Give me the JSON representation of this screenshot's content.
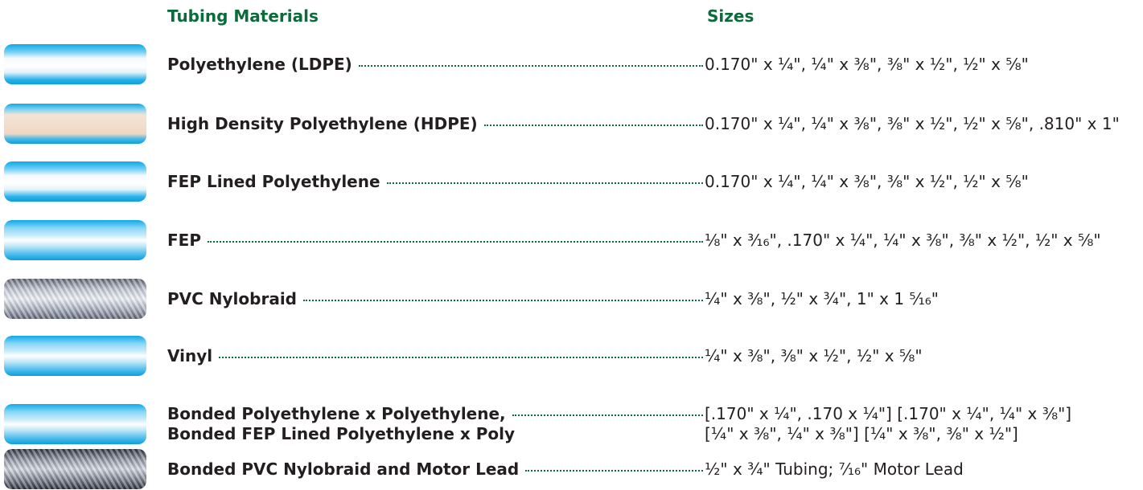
{
  "header": {
    "materials": "Tubing Materials",
    "sizes": "Sizes"
  },
  "rows": [
    {
      "material": [
        "Polyethylene (LDPE)"
      ],
      "sizes": [
        "0.170\" x ¼\", ¼\" x ³⁄₈\", ³⁄₈\" x ½\", ½\" x ⁵⁄₈\""
      ]
    },
    {
      "material": [
        "High Density Polyethylene (HDPE)"
      ],
      "sizes": [
        "0.170\" x ¼\", ¼\" x ³⁄₈\", ³⁄₈\" x ½\", ½\" x ⁵⁄₈\", .810\" x 1\""
      ]
    },
    {
      "material": [
        "FEP Lined Polyethylene"
      ],
      "sizes": [
        "0.170\" x ¼\", ¼\" x ³⁄₈\", ³⁄₈\" x ½\", ½\" x ⁵⁄₈\""
      ]
    },
    {
      "material": [
        "FEP"
      ],
      "sizes": [
        "¹⁄₈\" x ³⁄₁₆\", .170\" x ¼\", ¼\" x ³⁄₈\", ³⁄₈\" x ½\", ½\" x ⁵⁄₈\""
      ]
    },
    {
      "material": [
        "PVC Nylobraid"
      ],
      "sizes": [
        "¼\" x ³⁄₈\", ½\" x ¾\", 1\" x 1 ⁵⁄₁₆\""
      ]
    },
    {
      "material": [
        "Vinyl"
      ],
      "sizes": [
        "¼\" x ³⁄₈\", ³⁄₈\" x ½\", ½\" x ⁵⁄₈\""
      ]
    },
    {
      "material": [
        "Bonded Polyethylene x Polyethylene,",
        "Bonded FEP Lined Polyethylene x Poly"
      ],
      "sizes": [
        "[.170\" x ¼\", .170 x ¼\"] [.170\" x ¼\", ¼\" x ³⁄₈\"]",
        "[¼\" x ³⁄₈\", ¼\" x ³⁄₈\"] [¼\" x ³⁄₈\", ³⁄₈\" x ½\"]"
      ]
    },
    {
      "material": [
        "Bonded PVC Nylobraid and Motor Lead"
      ],
      "sizes": [
        "½\" x ¾\" Tubing; ⁷⁄₁₆\" Motor Lead"
      ]
    }
  ]
}
